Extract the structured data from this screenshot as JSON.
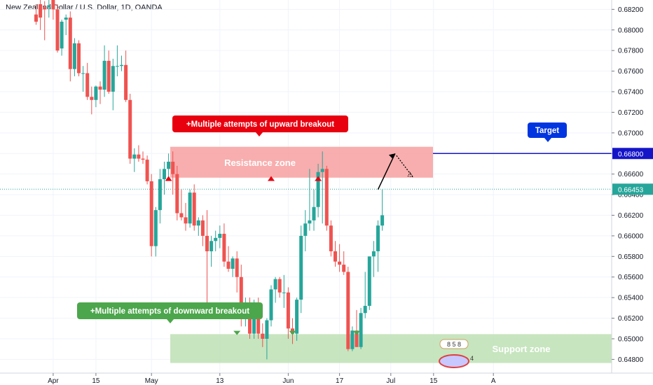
{
  "header": {
    "instrument": "New Zealand Dollar / U.S. Dollar, 1D, OANDA"
  },
  "annotations": {
    "resistance_callout": "+Multiple attempts of upward breakout",
    "support_callout": "+Multiple attempts of downward breakout",
    "resistance_zone_label": "Resistance zone",
    "support_zone_label": "Support zone",
    "target_label": "Target",
    "badge_numbers": "8 5 8",
    "badge_count": "4"
  },
  "colors": {
    "up": "#26a69a",
    "down": "#ef5350",
    "resistance_zone": "#f7a0a0",
    "support_zone": "#bde0b4",
    "target_line": "#1515c8",
    "current_price": "#26a69a",
    "resistance_callout": "#e8000f",
    "support_callout": "#4ca64c",
    "target_callout": "#0035e0"
  },
  "chart_data": {
    "type": "candlestick",
    "title": "New Zealand Dollar / U.S. Dollar, 1D, OANDA",
    "ylim": [
      0.6466,
      0.6825
    ],
    "y_ticks": [
      "0.68200",
      "0.68000",
      "0.67800",
      "0.67600",
      "0.67400",
      "0.67200",
      "0.67000",
      "0.66800",
      "0.66600",
      "0.66400",
      "0.66200",
      "0.66000",
      "0.65800",
      "0.65600",
      "0.65400",
      "0.65200",
      "0.65000",
      "0.64800"
    ],
    "x_ticks": [
      {
        "label": "Apr",
        "index": 4
      },
      {
        "label": "15",
        "index": 14
      },
      {
        "label": "May",
        "index": 27
      },
      {
        "label": "13",
        "index": 43
      },
      {
        "label": "Jun",
        "index": 59
      },
      {
        "label": "17",
        "index": 71
      },
      {
        "label": "Jul",
        "index": 83
      },
      {
        "label": "15",
        "index": 93
      },
      {
        "label": "A",
        "index": 107
      }
    ],
    "candles": [
      {
        "o": 0.6815,
        "h": 0.6825,
        "l": 0.6805,
        "c": 0.6808
      },
      {
        "o": 0.6825,
        "h": 0.683,
        "l": 0.68,
        "c": 0.6812
      },
      {
        "o": 0.6822,
        "h": 0.6828,
        "l": 0.679,
        "c": 0.682
      },
      {
        "o": 0.6822,
        "h": 0.683,
        "l": 0.6812,
        "c": 0.6824
      },
      {
        "o": 0.683,
        "h": 0.6835,
        "l": 0.681,
        "c": 0.682
      },
      {
        "o": 0.682,
        "h": 0.6825,
        "l": 0.6778,
        "c": 0.678
      },
      {
        "o": 0.6782,
        "h": 0.681,
        "l": 0.6775,
        "c": 0.6808
      },
      {
        "o": 0.681,
        "h": 0.6815,
        "l": 0.6795,
        "c": 0.6812
      },
      {
        "o": 0.6812,
        "h": 0.6818,
        "l": 0.675,
        "c": 0.6762
      },
      {
        "o": 0.6762,
        "h": 0.6792,
        "l": 0.6755,
        "c": 0.6787
      },
      {
        "o": 0.6787,
        "h": 0.679,
        "l": 0.6755,
        "c": 0.6758
      },
      {
        "o": 0.6758,
        "h": 0.6765,
        "l": 0.674,
        "c": 0.6758
      },
      {
        "o": 0.6758,
        "h": 0.6768,
        "l": 0.6732,
        "c": 0.6735
      },
      {
        "o": 0.6735,
        "h": 0.6745,
        "l": 0.6718,
        "c": 0.6732
      },
      {
        "o": 0.6732,
        "h": 0.6746,
        "l": 0.6725,
        "c": 0.6745
      },
      {
        "o": 0.6745,
        "h": 0.675,
        "l": 0.6728,
        "c": 0.6742
      },
      {
        "o": 0.6742,
        "h": 0.6785,
        "l": 0.6735,
        "c": 0.677
      },
      {
        "o": 0.677,
        "h": 0.678,
        "l": 0.6738,
        "c": 0.674
      },
      {
        "o": 0.674,
        "h": 0.6772,
        "l": 0.6722,
        "c": 0.6765
      },
      {
        "o": 0.6765,
        "h": 0.6785,
        "l": 0.6755,
        "c": 0.6765
      },
      {
        "o": 0.6765,
        "h": 0.6775,
        "l": 0.676,
        "c": 0.6766
      },
      {
        "o": 0.6766,
        "h": 0.678,
        "l": 0.673,
        "c": 0.6732
      },
      {
        "o": 0.6732,
        "h": 0.6738,
        "l": 0.667,
        "c": 0.6675
      },
      {
        "o": 0.6675,
        "h": 0.6685,
        "l": 0.6662,
        "c": 0.6679
      },
      {
        "o": 0.6679,
        "h": 0.6688,
        "l": 0.6672,
        "c": 0.6675
      },
      {
        "o": 0.6675,
        "h": 0.6682,
        "l": 0.667,
        "c": 0.6674
      },
      {
        "o": 0.6674,
        "h": 0.6678,
        "l": 0.665,
        "c": 0.6653
      },
      {
        "o": 0.6653,
        "h": 0.666,
        "l": 0.658,
        "c": 0.659
      },
      {
        "o": 0.659,
        "h": 0.6628,
        "l": 0.658,
        "c": 0.6625
      },
      {
        "o": 0.6625,
        "h": 0.6665,
        "l": 0.6612,
        "c": 0.6655
      },
      {
        "o": 0.6655,
        "h": 0.6672,
        "l": 0.664,
        "c": 0.6665
      },
      {
        "o": 0.6665,
        "h": 0.668,
        "l": 0.6655,
        "c": 0.6672
      },
      {
        "o": 0.6672,
        "h": 0.6682,
        "l": 0.664,
        "c": 0.666
      },
      {
        "o": 0.666,
        "h": 0.6668,
        "l": 0.6615,
        "c": 0.6622
      },
      {
        "o": 0.6622,
        "h": 0.6645,
        "l": 0.6615,
        "c": 0.6618
      },
      {
        "o": 0.6618,
        "h": 0.6632,
        "l": 0.6605,
        "c": 0.6612
      },
      {
        "o": 0.6612,
        "h": 0.6645,
        "l": 0.6608,
        "c": 0.6642
      },
      {
        "o": 0.6642,
        "h": 0.665,
        "l": 0.6605,
        "c": 0.661
      },
      {
        "o": 0.661,
        "h": 0.6618,
        "l": 0.66,
        "c": 0.6615
      },
      {
        "o": 0.6615,
        "h": 0.662,
        "l": 0.659,
        "c": 0.66
      },
      {
        "o": 0.66,
        "h": 0.6625,
        "l": 0.653,
        "c": 0.6585
      },
      {
        "o": 0.6585,
        "h": 0.66,
        "l": 0.657,
        "c": 0.6595
      },
      {
        "o": 0.6595,
        "h": 0.6605,
        "l": 0.6585,
        "c": 0.6598
      },
      {
        "o": 0.6598,
        "h": 0.661,
        "l": 0.6588,
        "c": 0.6602
      },
      {
        "o": 0.6602,
        "h": 0.6612,
        "l": 0.657,
        "c": 0.6575
      },
      {
        "o": 0.6575,
        "h": 0.659,
        "l": 0.6565,
        "c": 0.6568
      },
      {
        "o": 0.6568,
        "h": 0.658,
        "l": 0.656,
        "c": 0.6578
      },
      {
        "o": 0.6578,
        "h": 0.6585,
        "l": 0.6545,
        "c": 0.656
      },
      {
        "o": 0.656,
        "h": 0.6572,
        "l": 0.6512,
        "c": 0.6525
      },
      {
        "o": 0.6525,
        "h": 0.654,
        "l": 0.6512,
        "c": 0.6528
      },
      {
        "o": 0.6528,
        "h": 0.654,
        "l": 0.65,
        "c": 0.6505
      },
      {
        "o": 0.6505,
        "h": 0.6538,
        "l": 0.65,
        "c": 0.6528
      },
      {
        "o": 0.6528,
        "h": 0.654,
        "l": 0.65,
        "c": 0.6505
      },
      {
        "o": 0.6505,
        "h": 0.6515,
        "l": 0.6492,
        "c": 0.65
      },
      {
        "o": 0.65,
        "h": 0.652,
        "l": 0.648,
        "c": 0.6518
      },
      {
        "o": 0.6518,
        "h": 0.6552,
        "l": 0.6512,
        "c": 0.6548
      },
      {
        "o": 0.6548,
        "h": 0.656,
        "l": 0.6535,
        "c": 0.6558
      },
      {
        "o": 0.6558,
        "h": 0.656,
        "l": 0.654,
        "c": 0.6545
      },
      {
        "o": 0.6545,
        "h": 0.6562,
        "l": 0.653,
        "c": 0.6545
      },
      {
        "o": 0.6545,
        "h": 0.655,
        "l": 0.65,
        "c": 0.651
      },
      {
        "o": 0.651,
        "h": 0.652,
        "l": 0.6495,
        "c": 0.6505
      },
      {
        "o": 0.6505,
        "h": 0.654,
        "l": 0.6498,
        "c": 0.6538
      },
      {
        "o": 0.6538,
        "h": 0.661,
        "l": 0.6525,
        "c": 0.66
      },
      {
        "o": 0.66,
        "h": 0.6625,
        "l": 0.6585,
        "c": 0.6612
      },
      {
        "o": 0.6612,
        "h": 0.6665,
        "l": 0.6605,
        "c": 0.6615
      },
      {
        "o": 0.6615,
        "h": 0.6645,
        "l": 0.6605,
        "c": 0.6628
      },
      {
        "o": 0.6628,
        "h": 0.667,
        "l": 0.6618,
        "c": 0.6662
      },
      {
        "o": 0.6662,
        "h": 0.6682,
        "l": 0.6612,
        "c": 0.6665
      },
      {
        "o": 0.6665,
        "h": 0.6668,
        "l": 0.6605,
        "c": 0.661
      },
      {
        "o": 0.661,
        "h": 0.6615,
        "l": 0.658,
        "c": 0.6585
      },
      {
        "o": 0.6585,
        "h": 0.6595,
        "l": 0.657,
        "c": 0.6575
      },
      {
        "o": 0.6575,
        "h": 0.6592,
        "l": 0.6565,
        "c": 0.6572
      },
      {
        "o": 0.6572,
        "h": 0.6585,
        "l": 0.6562,
        "c": 0.6565
      },
      {
        "o": 0.6565,
        "h": 0.657,
        "l": 0.6488,
        "c": 0.649
      },
      {
        "o": 0.649,
        "h": 0.6512,
        "l": 0.6488,
        "c": 0.6508
      },
      {
        "o": 0.6508,
        "h": 0.6528,
        "l": 0.6492,
        "c": 0.6492
      },
      {
        "o": 0.6492,
        "h": 0.653,
        "l": 0.649,
        "c": 0.6525
      },
      {
        "o": 0.6525,
        "h": 0.6565,
        "l": 0.652,
        "c": 0.6532
      },
      {
        "o": 0.6532,
        "h": 0.658,
        "l": 0.6528,
        "c": 0.658
      },
      {
        "o": 0.658,
        "h": 0.6595,
        "l": 0.656,
        "c": 0.6585
      },
      {
        "o": 0.6585,
        "h": 0.6615,
        "l": 0.6565,
        "c": 0.661
      },
      {
        "o": 0.661,
        "h": 0.6645,
        "l": 0.6605,
        "c": 0.662
      }
    ],
    "zones": [
      {
        "name": "Resistance zone",
        "from": 0.66565,
        "to": 0.66865
      },
      {
        "name": "Support zone",
        "from": 0.64765,
        "to": 0.65045
      }
    ],
    "target_price": 0.668,
    "target_price_label": "0.66800",
    "current_price": 0.66453,
    "current_price_label": "0.66453",
    "projection": {
      "from": [
        80,
        0.6645
      ],
      "to": [
        84,
        0.668
      ],
      "dotted_to": [
        88,
        0.6658
      ]
    },
    "resistance_touch_markers": [
      {
        "i": 31,
        "y": 0.6656
      },
      {
        "i": 55,
        "y": 0.6656
      },
      {
        "i": 66,
        "y": 0.6656
      }
    ],
    "support_touch_markers": [
      {
        "i": 47,
        "y": 0.6505
      },
      {
        "i": 60,
        "y": 0.6505
      },
      {
        "i": 75,
        "y": 0.6505
      }
    ]
  }
}
